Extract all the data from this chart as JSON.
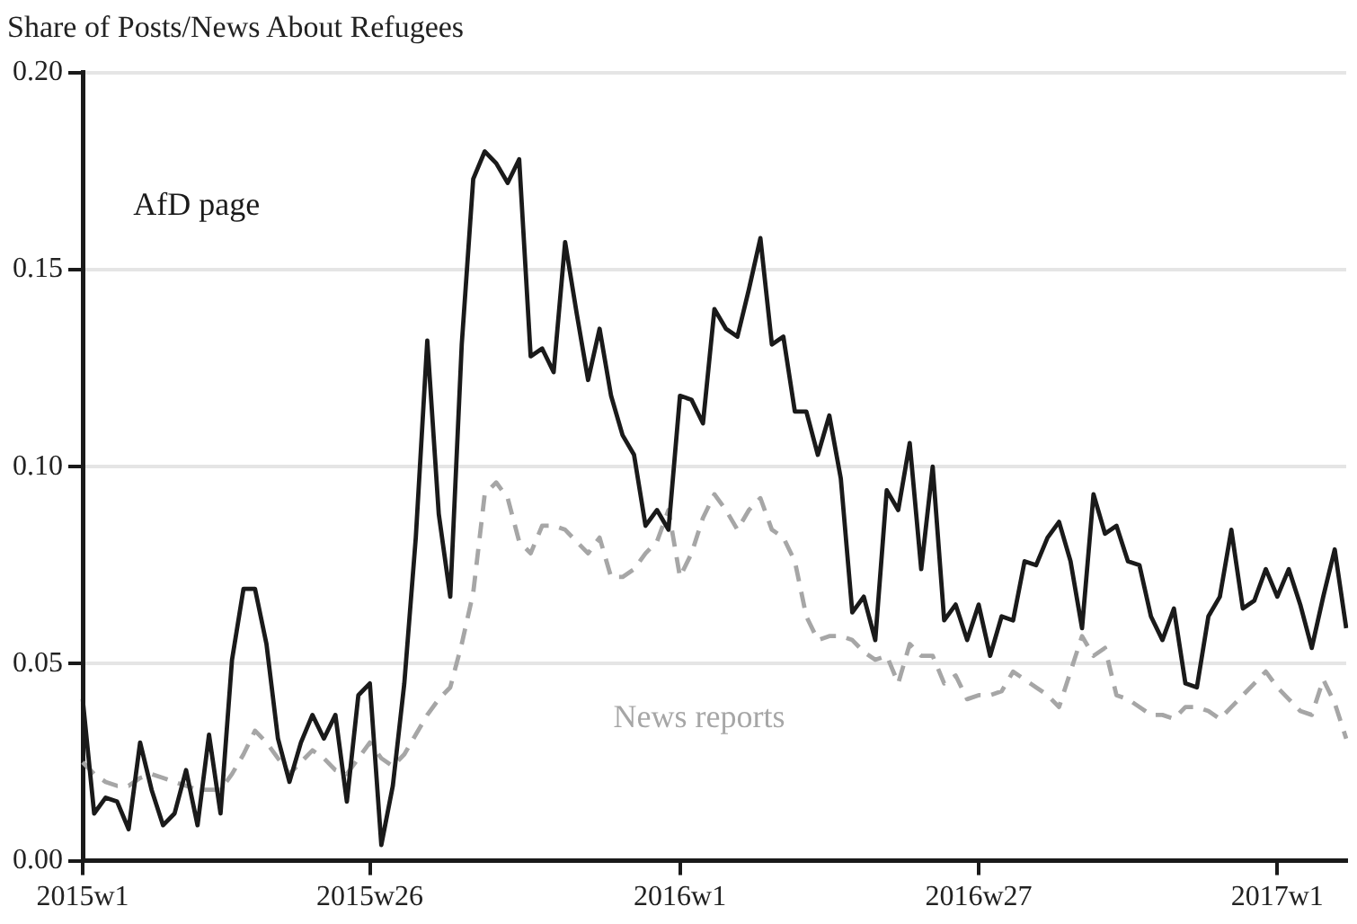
{
  "chart_data": {
    "type": "line",
    "title": "Share of Posts/News About Refugees",
    "categories": [
      "2015w1",
      null,
      null,
      null,
      null,
      null,
      null,
      null,
      null,
      null,
      null,
      null,
      null,
      null,
      null,
      null,
      null,
      null,
      null,
      null,
      null,
      null,
      null,
      null,
      null,
      "2015w26",
      null,
      null,
      null,
      null,
      null,
      null,
      null,
      null,
      null,
      null,
      null,
      null,
      null,
      null,
      null,
      null,
      null,
      null,
      null,
      null,
      null,
      null,
      null,
      null,
      null,
      null,
      "2016w1",
      null,
      null,
      null,
      null,
      null,
      null,
      null,
      null,
      null,
      null,
      null,
      null,
      null,
      null,
      null,
      null,
      null,
      null,
      null,
      null,
      null,
      null,
      null,
      null,
      null,
      "2016w27",
      null,
      null,
      null,
      null,
      null,
      null,
      null,
      null,
      null,
      null,
      null,
      null,
      null,
      null,
      null,
      null,
      null,
      null,
      null,
      null,
      null,
      null,
      null,
      null,
      null,
      "2017w1",
      null,
      null,
      null,
      null,
      null,
      null
    ],
    "series": [
      {
        "name": "AfD page",
        "color": "#1a1a1a",
        "line_style": "solid",
        "values": [
          0.041,
          0.012,
          0.016,
          0.015,
          0.008,
          0.03,
          0.018,
          0.009,
          0.012,
          0.023,
          0.009,
          0.032,
          0.012,
          0.051,
          0.069,
          0.069,
          0.055,
          0.031,
          0.02,
          0.03,
          0.037,
          0.031,
          0.037,
          0.015,
          0.042,
          0.045,
          0.004,
          0.019,
          0.045,
          0.082,
          0.132,
          0.088,
          0.067,
          0.131,
          0.173,
          0.18,
          0.177,
          0.172,
          0.178,
          0.128,
          0.13,
          0.124,
          0.157,
          0.139,
          0.122,
          0.135,
          0.118,
          0.108,
          0.103,
          0.085,
          0.089,
          0.084,
          0.118,
          0.117,
          0.111,
          0.14,
          0.135,
          0.133,
          0.145,
          0.158,
          0.131,
          0.133,
          0.114,
          0.114,
          0.103,
          0.113,
          0.097,
          0.063,
          0.067,
          0.056,
          0.094,
          0.089,
          0.106,
          0.074,
          0.1,
          0.061,
          0.065,
          0.056,
          0.065,
          0.052,
          0.062,
          0.061,
          0.076,
          0.075,
          0.082,
          0.086,
          0.076,
          0.059,
          0.093,
          0.083,
          0.085,
          0.076,
          0.075,
          0.062,
          0.056,
          0.064,
          0.045,
          0.044,
          0.062,
          0.067,
          0.084,
          0.064,
          0.066,
          0.074,
          0.067,
          0.074,
          0.065,
          0.054,
          0.067,
          0.079,
          0.059
        ]
      },
      {
        "name": "News reports",
        "color": "#a6a6a6",
        "line_style": "dashed",
        "values": [
          0.025,
          0.022,
          0.02,
          0.019,
          0.019,
          0.021,
          0.022,
          0.021,
          0.02,
          0.019,
          0.018,
          0.018,
          0.018,
          0.022,
          0.027,
          0.033,
          0.03,
          0.026,
          0.022,
          0.025,
          0.028,
          0.026,
          0.023,
          0.022,
          0.026,
          0.03,
          0.026,
          0.024,
          0.027,
          0.032,
          0.037,
          0.041,
          0.044,
          0.055,
          0.068,
          0.093,
          0.096,
          0.092,
          0.081,
          0.078,
          0.085,
          0.085,
          0.084,
          0.081,
          0.078,
          0.082,
          0.072,
          0.072,
          0.074,
          0.078,
          0.081,
          0.089,
          0.072,
          0.078,
          0.087,
          0.093,
          0.089,
          0.084,
          0.089,
          0.092,
          0.084,
          0.082,
          0.076,
          0.062,
          0.056,
          0.057,
          0.057,
          0.056,
          0.053,
          0.051,
          0.052,
          0.045,
          0.055,
          0.052,
          0.052,
          0.045,
          0.047,
          0.041,
          0.042,
          0.042,
          0.043,
          0.048,
          0.046,
          0.044,
          0.042,
          0.039,
          0.048,
          0.057,
          0.052,
          0.054,
          0.042,
          0.041,
          0.039,
          0.037,
          0.037,
          0.036,
          0.039,
          0.039,
          0.038,
          0.036,
          0.039,
          0.042,
          0.045,
          0.048,
          0.044,
          0.041,
          0.038,
          0.037,
          0.046,
          0.04,
          0.031
        ]
      }
    ],
    "ylim": [
      0,
      0.2
    ],
    "yticks": [
      {
        "value": 0,
        "label": "0.00"
      },
      {
        "value": 0.05,
        "label": "0.05"
      },
      {
        "value": 0.1,
        "label": "0.10"
      },
      {
        "value": 0.15,
        "label": "0.15"
      },
      {
        "value": 0.2,
        "label": "0.20"
      }
    ],
    "grid": "y",
    "legend": false,
    "marker": "none"
  }
}
